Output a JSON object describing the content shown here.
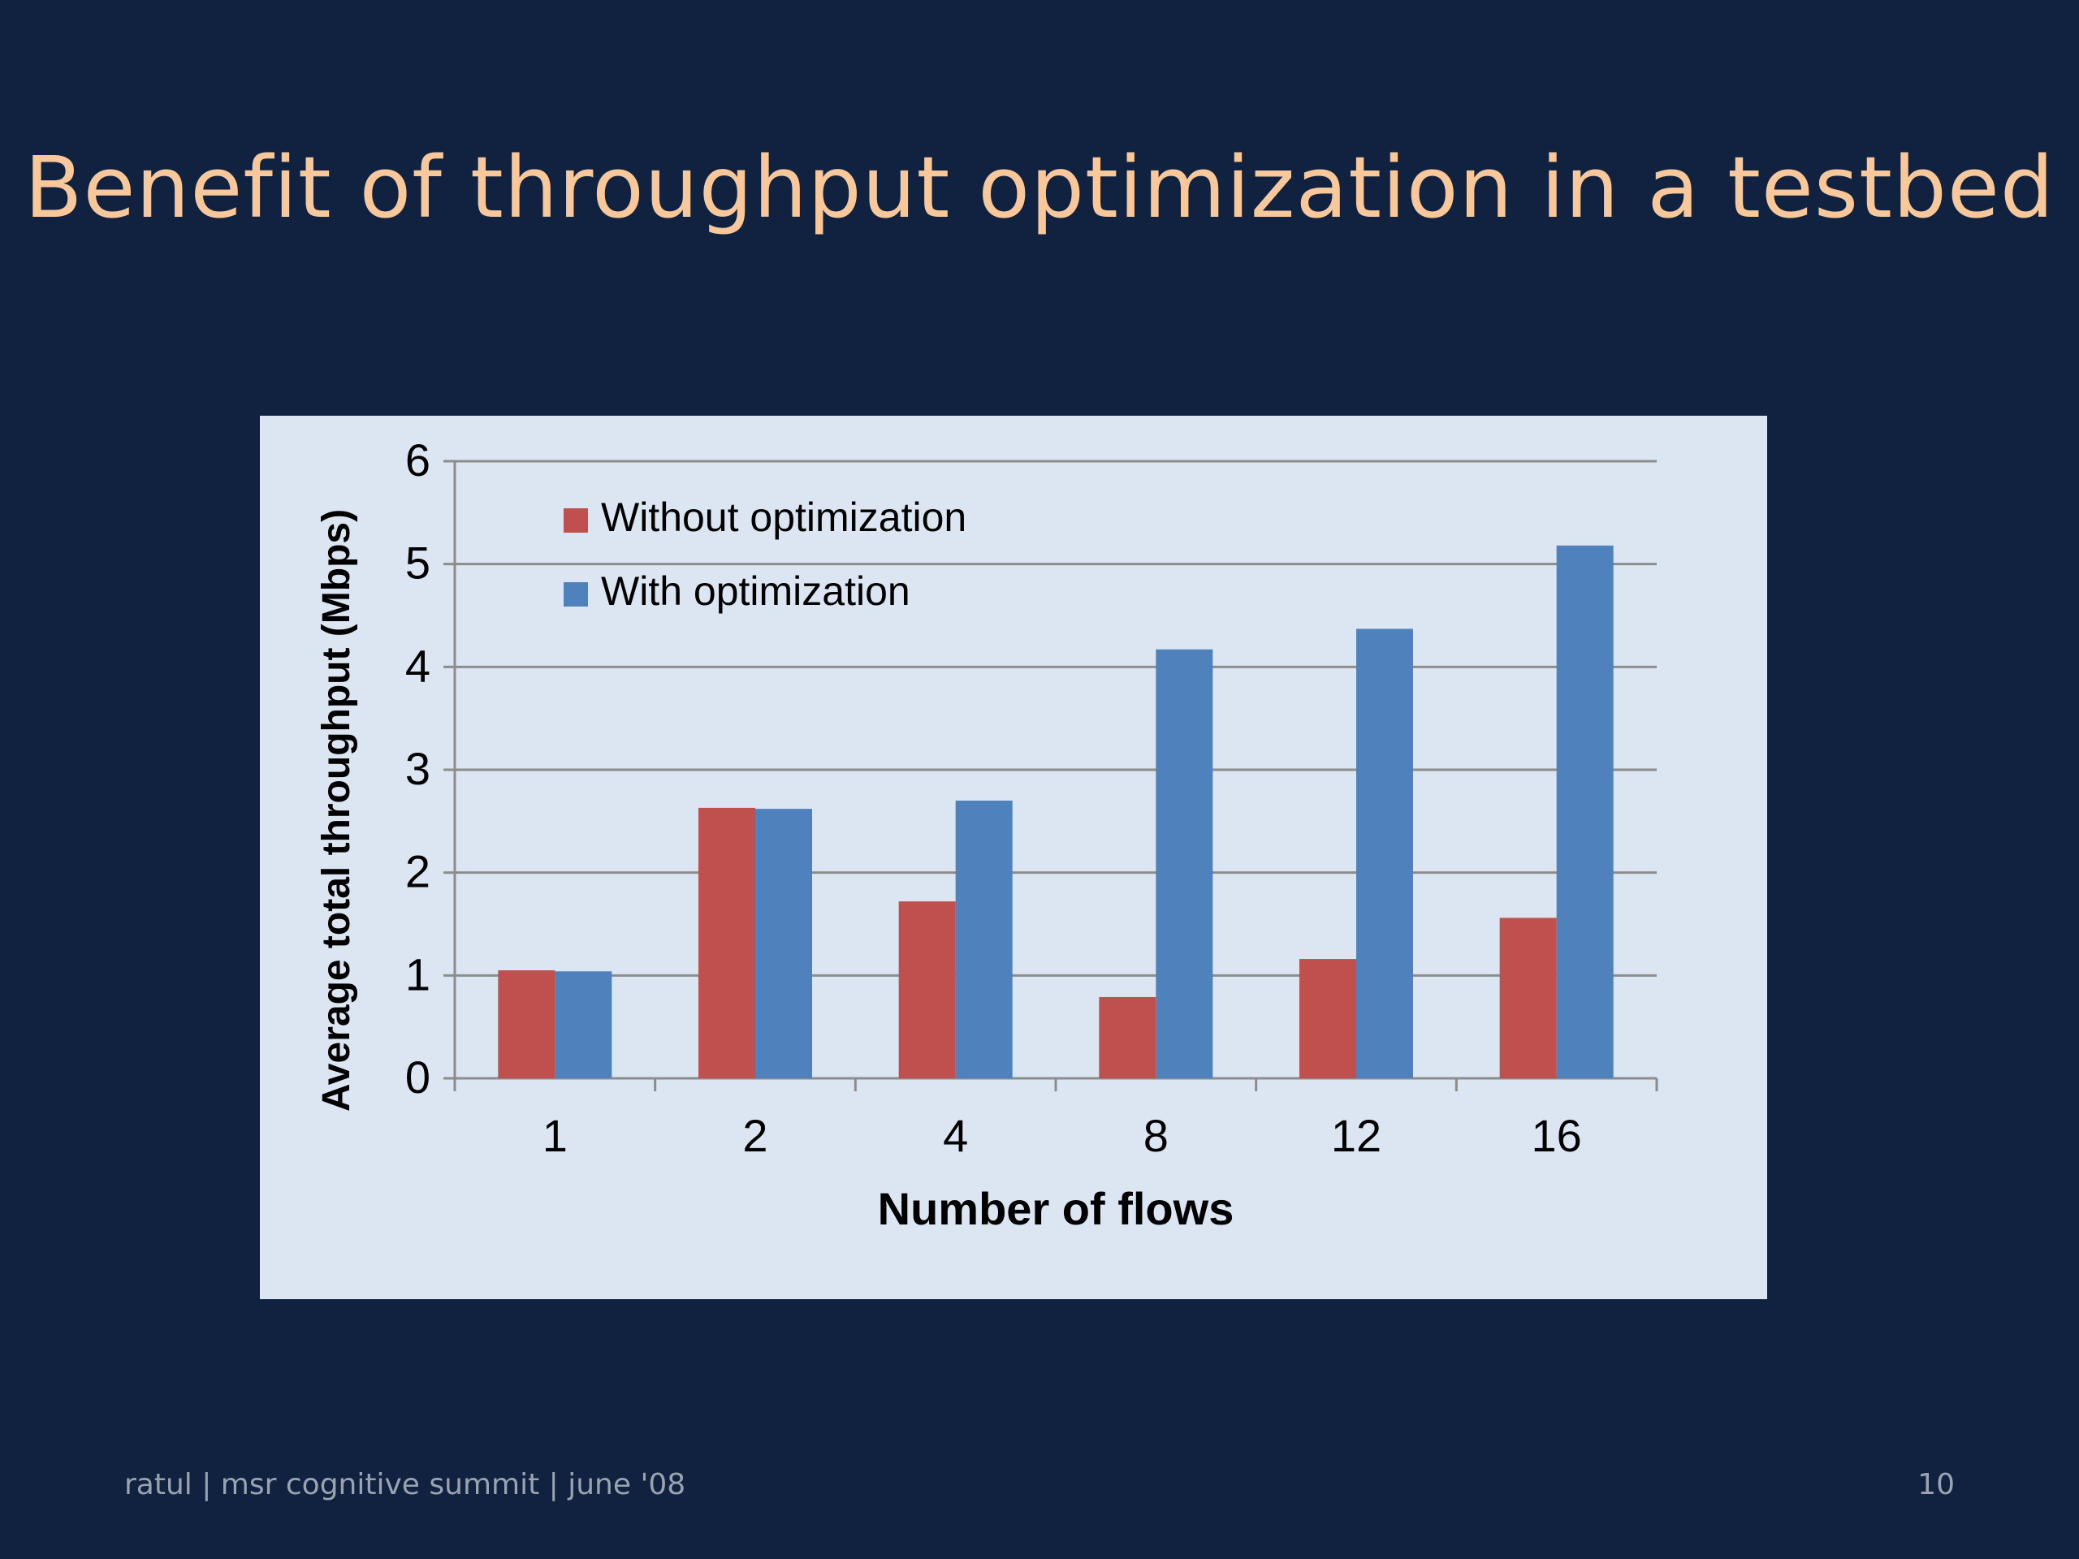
{
  "slide": {
    "title": "Benefit of throughput optimization in a testbed",
    "footer_left": "ratul | msr cognitive summit | june '08",
    "page_number": "10"
  },
  "chart_data": {
    "type": "bar",
    "title": "",
    "xlabel": "Number of flows",
    "ylabel": "Average total throughput (Mbps)",
    "categories": [
      "1",
      "2",
      "4",
      "8",
      "12",
      "16"
    ],
    "ylim": [
      0,
      6
    ],
    "yticks": [
      0,
      1,
      2,
      3,
      4,
      5,
      6
    ],
    "grid": true,
    "legend_position": "top-left",
    "series": [
      {
        "name": "Without optimization",
        "color": "#c0504d",
        "values": [
          1.05,
          2.63,
          1.72,
          0.79,
          1.16,
          1.56
        ]
      },
      {
        "name": "With optimization",
        "color": "#4f81bd",
        "values": [
          1.04,
          2.62,
          2.7,
          4.17,
          4.37,
          5.18
        ]
      }
    ]
  }
}
